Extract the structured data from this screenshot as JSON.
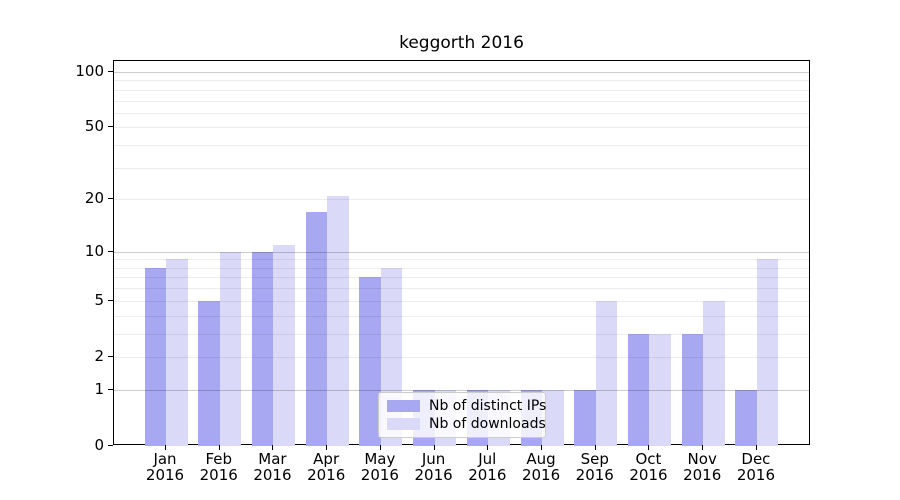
{
  "chart_data": {
    "type": "bar",
    "title": "keggorth 2016",
    "scale": "log1p",
    "categories": [
      "Jan",
      "Feb",
      "Mar",
      "Apr",
      "May",
      "Jun",
      "Jul",
      "Aug",
      "Sep",
      "Oct",
      "Nov",
      "Dec"
    ],
    "x_tick_year": "2016",
    "series": [
      {
        "name": "Nb of distinct IPs",
        "color": "#a8a8f2",
        "values": [
          8,
          5,
          10,
          17,
          7,
          1,
          1,
          1,
          1,
          3,
          3,
          1
        ]
      },
      {
        "name": "Nb of downloads",
        "color": "#dadaf8",
        "values": [
          9,
          10,
          11,
          21,
          8,
          1,
          1,
          1,
          5,
          3,
          5,
          9
        ]
      }
    ],
    "yticks": [
      0,
      1,
      2,
      5,
      10,
      20,
      50,
      100
    ],
    "major_gridlines": [
      1,
      10,
      100
    ],
    "ylim": [
      0,
      115
    ],
    "xlabel": "",
    "ylabel": "",
    "grid": true,
    "legend": {
      "position": "lower-center"
    }
  },
  "colors": {
    "background": "#ffffff",
    "spine": "#000000",
    "grid_major": "rgba(0,0,0,0.20)",
    "grid_minor": "rgba(0,0,0,0.07)",
    "text": "#000000"
  }
}
